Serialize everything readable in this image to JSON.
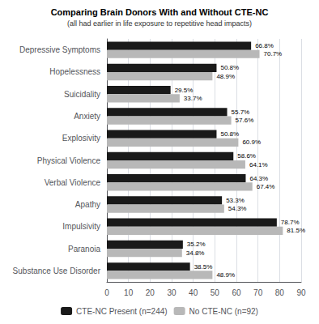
{
  "chart_data": {
    "type": "bar",
    "orientation": "horizontal",
    "title": "Comparing Brain Donors With and Without CTE-NC",
    "subtitle": "(all had earlier in life exposure to repetitive head impacts)",
    "categories": [
      "Depressive Symptoms",
      "Hopelessness",
      "Suicidality",
      "Anxiety",
      "Explosivity",
      "Physical Violence",
      "Verbal Violence",
      "Apathy",
      "Impulsivity",
      "Paranoia",
      "Substance Use Disorder"
    ],
    "series": [
      {
        "name": "CTE-NC Present (n=244)",
        "color": "#1a1a1a",
        "values": [
          66.8,
          50.8,
          29.5,
          55.7,
          50.8,
          58.6,
          64.3,
          53.3,
          78.7,
          35.2,
          38.5
        ],
        "value_labels": [
          "66.8%",
          "50.8%",
          "29.5%",
          "55.7%",
          "50.8%",
          "58.6%",
          "64.3%",
          "53.3%",
          "78.7%",
          "35.2%",
          "38.5%"
        ]
      },
      {
        "name": "No CTE-NC (n=92)",
        "color": "#b8b8b8",
        "values": [
          70.7,
          48.9,
          33.7,
          57.6,
          60.9,
          64.1,
          67.4,
          54.3,
          81.5,
          34.8,
          48.9
        ],
        "value_labels": [
          "70.7%",
          "48.9%",
          "33.7%",
          "57.6%",
          "60.9%",
          "64.1%",
          "67.4%",
          "54.3%",
          "81.5%",
          "34.8%",
          "48.9%"
        ]
      }
    ],
    "xlim": [
      0,
      90
    ],
    "xticks": [
      0,
      10,
      20,
      30,
      40,
      50,
      60,
      70,
      80,
      90
    ],
    "grid": true,
    "legend": "bottom",
    "data_labels": true
  }
}
